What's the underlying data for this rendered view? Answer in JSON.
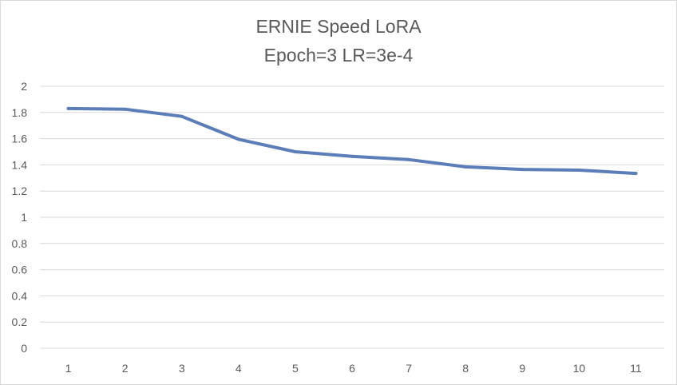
{
  "chart_data": {
    "type": "line",
    "title": [
      "ERNIE Speed LoRA",
      "Epoch=3 LR=3e-4"
    ],
    "xlabel": "",
    "ylabel": "",
    "x": [
      1,
      2,
      3,
      4,
      5,
      6,
      7,
      8,
      9,
      10,
      11
    ],
    "series": [
      {
        "values": [
          1.83,
          1.825,
          1.77,
          1.595,
          1.5,
          1.465,
          1.44,
          1.385,
          1.365,
          1.36,
          1.335
        ]
      }
    ],
    "ylim": [
      0,
      2
    ],
    "yticks": [
      0,
      0.2,
      0.4,
      0.6,
      0.8,
      1,
      1.2,
      1.4,
      1.6,
      1.8,
      2
    ],
    "grid": true,
    "legend": "none",
    "line_color": "#5b7db8"
  }
}
